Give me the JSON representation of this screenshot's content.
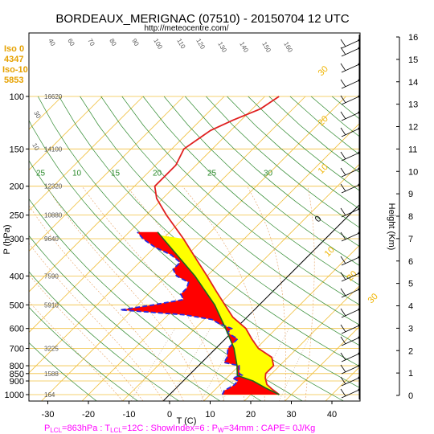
{
  "chart_data": {
    "type": "line",
    "title": "BORDEAUX_MERIGNAC (07510) - 20150704 12 UTC",
    "subtitle": "http://meteocentre.com/",
    "xlabel": "T (C)",
    "ylabel": "P (hPa)",
    "ylabel_right": "Height (Km)",
    "xlim": [
      -35,
      50
    ],
    "ylim": [
      1050,
      100
    ],
    "x_ticks": [
      -30,
      -20,
      -10,
      0,
      10,
      20,
      30,
      40
    ],
    "p_ticks": [
      100,
      150,
      200,
      250,
      300,
      400,
      500,
      600,
      700,
      800,
      850,
      900,
      1000
    ],
    "height_ticks": [
      0,
      1,
      2,
      3,
      4,
      5,
      6,
      7,
      8,
      9,
      10,
      11,
      12,
      13,
      14,
      15,
      16
    ],
    "geopotential_labels": [
      {
        "p": 100,
        "text": "16620"
      },
      {
        "p": 150,
        "text": "14100"
      },
      {
        "p": 200,
        "text": "12320"
      },
      {
        "p": 250,
        "text": "10880"
      },
      {
        "p": 300,
        "text": "9640"
      },
      {
        "p": 400,
        "text": "7590"
      },
      {
        "p": 500,
        "text": "5910"
      },
      {
        "p": 700,
        "text": "3225"
      },
      {
        "p": 850,
        "text": "1588"
      },
      {
        "p": 1000,
        "text": "164"
      }
    ],
    "iso_info": [
      "Iso 0",
      "4347",
      "Iso-10",
      "5853"
    ],
    "mixing_ratio_labels": [
      "25",
      "10",
      "15",
      "20",
      "25",
      "30"
    ],
    "theta_labels": [
      "10",
      "30",
      "40",
      "60",
      "70",
      "80",
      "90",
      "100",
      "110",
      "120",
      "130",
      "140",
      "150",
      "160"
    ],
    "temp_axis_labels_upper": [
      "30",
      "20",
      "10",
      "0",
      "10",
      "20",
      "30"
    ],
    "series": [
      {
        "name": "T",
        "color": "#e02020",
        "points": [
          [
            1000,
            27
          ],
          [
            960,
            24
          ],
          [
            925,
            21.5
          ],
          [
            880,
            19.5
          ],
          [
            850,
            18.5
          ],
          [
            800,
            18.5
          ],
          [
            750,
            16
          ],
          [
            700,
            10.5
          ],
          [
            650,
            6.5
          ],
          [
            600,
            2.5
          ],
          [
            550,
            -3.5
          ],
          [
            500,
            -8.5
          ],
          [
            450,
            -14
          ],
          [
            400,
            -20
          ],
          [
            350,
            -27
          ],
          [
            300,
            -35
          ],
          [
            250,
            -45
          ],
          [
            220,
            -51.5
          ],
          [
            200,
            -55
          ],
          [
            170,
            -55
          ],
          [
            150,
            -57
          ],
          [
            130,
            -55
          ],
          [
            120,
            -52
          ],
          [
            110,
            -48
          ],
          [
            100,
            -46.5
          ]
        ]
      },
      {
        "name": "Td",
        "color": "#2a2ae0",
        "points": [
          [
            1000,
            13
          ],
          [
            970,
            12.5
          ],
          [
            930,
            13.5
          ],
          [
            900,
            13.5
          ],
          [
            880,
            11.5
          ],
          [
            860,
            13
          ],
          [
            850,
            12
          ],
          [
            800,
            10
          ],
          [
            780,
            5.5
          ],
          [
            750,
            5
          ],
          [
            700,
            3
          ],
          [
            680,
            3
          ],
          [
            650,
            3
          ],
          [
            620,
            -1
          ],
          [
            600,
            -1
          ],
          [
            580,
            -5
          ],
          [
            560,
            -8
          ],
          [
            540,
            -16
          ],
          [
            520,
            -33
          ],
          [
            500,
            -26
          ],
          [
            480,
            -20
          ],
          [
            460,
            -22
          ],
          [
            440,
            -22
          ],
          [
            420,
            -23
          ],
          [
            400,
            -27.5
          ],
          [
            380,
            -30
          ],
          [
            360,
            -30
          ],
          [
            340,
            -34
          ],
          [
            320,
            -40
          ],
          [
            300,
            -45
          ],
          [
            285,
            -48
          ]
        ]
      },
      {
        "name": "parcel",
        "color": "#1a6a1a",
        "points": [
          [
            1000,
            27
          ],
          [
            950,
            22
          ],
          [
            900,
            17.2
          ],
          [
            863,
            12
          ],
          [
            800,
            9.5
          ],
          [
            700,
            4.5
          ],
          [
            600,
            -2.5
          ],
          [
            500,
            -11
          ],
          [
            400,
            -23
          ],
          [
            300,
            -40
          ],
          [
            285,
            -43
          ]
        ]
      }
    ],
    "footer": "P_LCL=863hPa : T_LCL=12C : ShowIndex=6 : P_w=34mm : CAPE= 0J/Kg",
    "footer_parts": {
      "p_lcl": "P",
      "p_lcl_sub": "LCL",
      "p_lcl_val": "=863hPa : T",
      "t_lcl_sub": "LCL",
      "t_lcl_val": "=12C : ShowIndex=6 : P",
      "pw_sub": "W",
      "pw_val": "=34mm : CAPE= 0J/Kg"
    },
    "grid": true
  }
}
